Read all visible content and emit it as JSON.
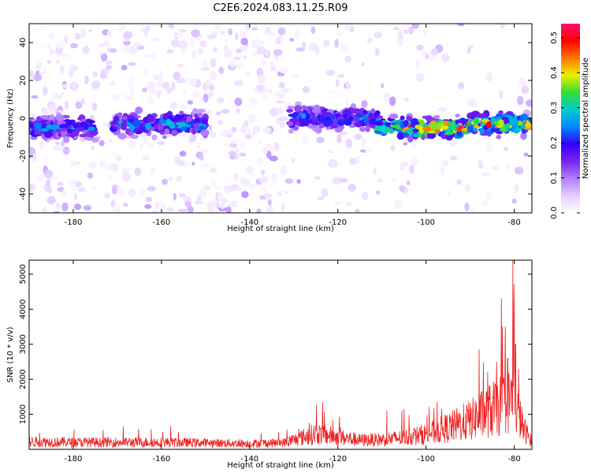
{
  "title": "C2E6.2024.083.11.25.R09",
  "colors": {
    "snr_line": "#ee2222",
    "background": "#ffffff",
    "axis": "#000000",
    "colormap": [
      "#ffffff",
      "#e4ccff",
      "#b080ff",
      "#7a22ee",
      "#3300ff",
      "#0088ff",
      "#00cccc",
      "#33dd33",
      "#eeee00",
      "#ff7700",
      "#ff0000",
      "#ff1166"
    ]
  },
  "chart_data": [
    {
      "type": "heatmap",
      "title": "",
      "xlabel": "Height of straight line (km)",
      "ylabel": "Frequency (Hz)",
      "xlim": [
        -190,
        -76
      ],
      "ylim": [
        -50,
        50
      ],
      "xticks": [
        -180,
        -160,
        -140,
        -120,
        -100,
        -80
      ],
      "yticks": [
        -40,
        -20,
        0,
        20,
        40
      ],
      "colorbar": {
        "label": "Normalized spectral amplitude",
        "range": [
          0,
          0.54
        ],
        "ticks": [
          "0.0",
          "0.1",
          "0.2",
          "0.3",
          "0.4",
          "0.5"
        ],
        "tick_values": [
          0,
          0.1,
          0.2,
          0.3,
          0.4,
          0.5
        ]
      },
      "segments": [
        {
          "x": [
            -190,
            -175
          ],
          "center_hz": -5,
          "halfwidth_hz": 8,
          "peak_amp": 0.24
        },
        {
          "x": [
            -171,
            -150
          ],
          "center_hz": -3,
          "halfwidth_hz": 9,
          "peak_amp": 0.26
        },
        {
          "x": [
            -131,
            -111
          ],
          "center_hz": 0,
          "halfwidth_hz": 8,
          "peak_amp": 0.24
        },
        {
          "x": [
            -111,
            -90
          ],
          "center_hz": -5,
          "halfwidth_hz": 7,
          "peak_amp": 0.52
        },
        {
          "x": [
            -90,
            -76
          ],
          "center_hz": -3,
          "halfwidth_hz": 8,
          "peak_amp": 0.45
        }
      ],
      "background_clutter": [
        {
          "x": [
            -190,
            -131
          ],
          "density": 0.85
        },
        {
          "x": [
            -131,
            -110
          ],
          "density": 0.35
        },
        {
          "x": [
            -110,
            -76
          ],
          "density": 0.25
        }
      ]
    },
    {
      "type": "line",
      "title": "",
      "xlabel": "Height of straight line (km)",
      "ylabel": "SNR (10 * v/v)",
      "xlim": [
        -190,
        -76
      ],
      "ylim": [
        0,
        5400
      ],
      "xticks": [
        -180,
        -160,
        -140,
        -120,
        -100,
        -80
      ],
      "yticks": [
        1000,
        2000,
        3000,
        4000,
        5000
      ],
      "series": [
        {
          "name": "",
          "profile": [
            {
              "x": -190,
              "y": 250
            },
            {
              "x": -180,
              "y": 230
            },
            {
              "x": -170,
              "y": 230
            },
            {
              "x": -160,
              "y": 230
            },
            {
              "x": -150,
              "y": 210
            },
            {
              "x": -140,
              "y": 190
            },
            {
              "x": -132,
              "y": 220
            },
            {
              "x": -125,
              "y": 520
            },
            {
              "x": -120,
              "y": 400
            },
            {
              "x": -115,
              "y": 300
            },
            {
              "x": -110,
              "y": 320
            },
            {
              "x": -105,
              "y": 380
            },
            {
              "x": -100,
              "y": 500
            },
            {
              "x": -95,
              "y": 700
            },
            {
              "x": -90,
              "y": 950
            },
            {
              "x": -85,
              "y": 1300
            },
            {
              "x": -82,
              "y": 1500
            },
            {
              "x": -80,
              "y": 1700
            },
            {
              "x": -78,
              "y": 700
            },
            {
              "x": -76,
              "y": 250
            }
          ],
          "peaks": [
            {
              "x": -123.5,
              "y": 1350
            },
            {
              "x": -88,
              "y": 2850
            },
            {
              "x": -86,
              "y": 2200
            },
            {
              "x": -84,
              "y": 2500
            },
            {
              "x": -82,
              "y": 3500
            },
            {
              "x": -81.5,
              "y": 2600
            },
            {
              "x": -80.3,
              "y": 5400
            },
            {
              "x": -80.0,
              "y": 3800
            },
            {
              "x": -79.7,
              "y": 3000
            },
            {
              "x": -79.0,
              "y": 2300
            }
          ]
        }
      ]
    }
  ]
}
